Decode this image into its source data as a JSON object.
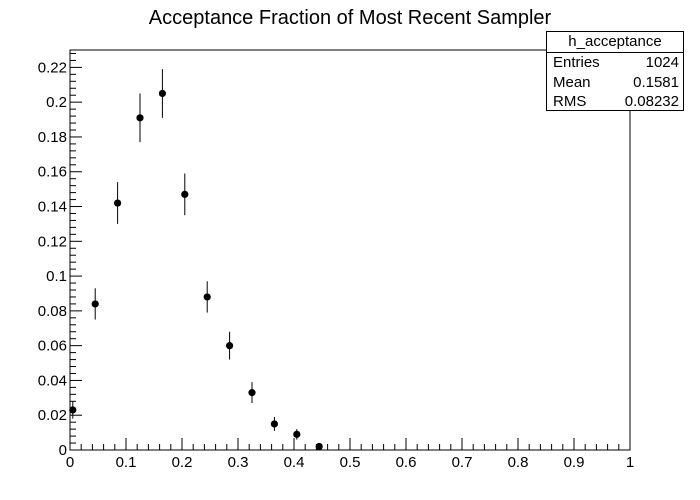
{
  "chart_data": {
    "type": "scatter",
    "title": "Acceptance Fraction of Most Recent Sampler",
    "xlim": [
      0,
      1
    ],
    "ylim": [
      0,
      0.23
    ],
    "x_ticks": [
      "0",
      "0.1",
      "0.2",
      "0.3",
      "0.4",
      "0.5",
      "0.6",
      "0.7",
      "0.8",
      "0.9",
      "1"
    ],
    "y_ticks": [
      "0",
      "0.02",
      "0.04",
      "0.06",
      "0.08",
      "0.1",
      "0.12",
      "0.14",
      "0.16",
      "0.18",
      "0.2",
      "0.22"
    ],
    "points": [
      {
        "x": 0.005,
        "y": 0.023,
        "err": 0.005
      },
      {
        "x": 0.045,
        "y": 0.084,
        "err": 0.009
      },
      {
        "x": 0.085,
        "y": 0.142,
        "err": 0.012
      },
      {
        "x": 0.125,
        "y": 0.191,
        "err": 0.014
      },
      {
        "x": 0.165,
        "y": 0.205,
        "err": 0.014
      },
      {
        "x": 0.205,
        "y": 0.147,
        "err": 0.012
      },
      {
        "x": 0.245,
        "y": 0.088,
        "err": 0.009
      },
      {
        "x": 0.285,
        "y": 0.06,
        "err": 0.008
      },
      {
        "x": 0.325,
        "y": 0.033,
        "err": 0.006
      },
      {
        "x": 0.365,
        "y": 0.015,
        "err": 0.004
      },
      {
        "x": 0.405,
        "y": 0.009,
        "err": 0.003
      },
      {
        "x": 0.445,
        "y": 0.002,
        "err": 0.0015
      }
    ],
    "grid": false,
    "stats_box": {
      "name": "h_acceptance",
      "rows": [
        {
          "label": "Entries",
          "value": "1024"
        },
        {
          "label": "Mean",
          "value": "0.1581"
        },
        {
          "label": "RMS",
          "value": "0.08232"
        }
      ]
    }
  }
}
